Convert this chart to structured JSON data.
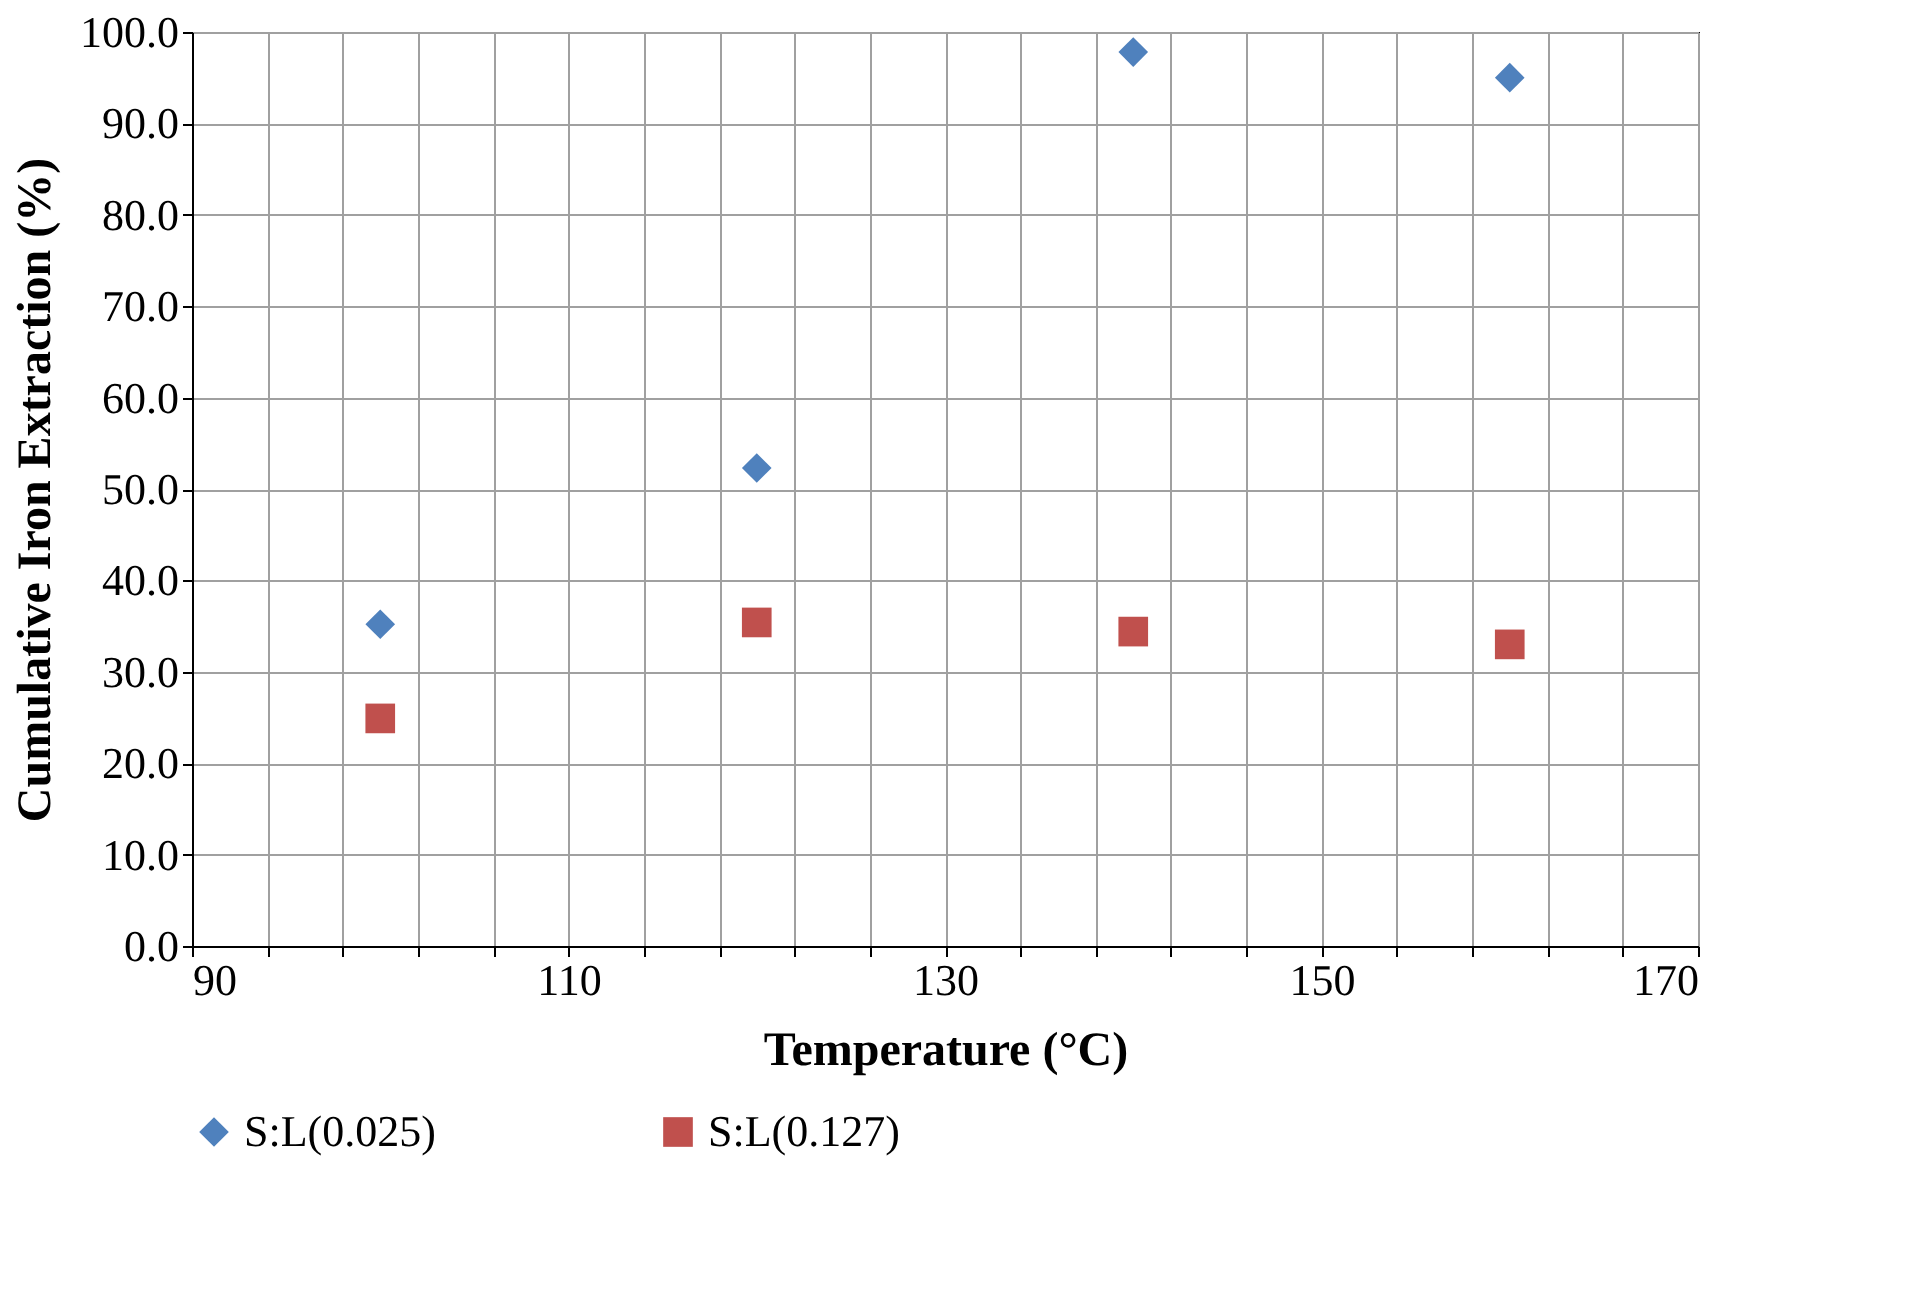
{
  "chart_data": {
    "type": "scatter",
    "xlabel": "Temperature (°C)",
    "ylabel": "Cumulative Iron Extraction (%)",
    "x": [
      100,
      120,
      140,
      160
    ],
    "series": [
      {
        "name": "S:L(0.025)",
        "color": "#4f81bd",
        "marker": "diamond",
        "values": [
          35.2,
          52.3,
          97.8,
          95.0
        ]
      },
      {
        "name": "S:L(0.127)",
        "color": "#c0504d",
        "marker": "square",
        "values": [
          24.9,
          35.4,
          34.4,
          33.0
        ]
      }
    ],
    "xlim": [
      90,
      170
    ],
    "xticks": [
      90,
      {
        "value": 94,
        "label": null
      },
      {
        "value": 98,
        "label": null
      },
      {
        "value": 102,
        "label": null
      },
      {
        "value": 106,
        "label": null
      },
      110,
      {
        "value": 114,
        "label": null
      },
      {
        "value": 118,
        "label": null
      },
      {
        "value": 122,
        "label": null
      },
      {
        "value": 126,
        "label": null
      },
      130,
      {
        "value": 134,
        "label": null
      },
      {
        "value": 138,
        "label": null
      },
      {
        "value": 142,
        "label": null
      },
      {
        "value": 146,
        "label": null
      },
      150,
      {
        "value": 154,
        "label": null
      },
      {
        "value": 158,
        "label": null
      },
      {
        "value": 162,
        "label": null
      },
      {
        "value": 166,
        "label": null
      },
      170
    ],
    "ylim": [
      0,
      100
    ],
    "yticks": [
      {
        "value": 0,
        "label": "0.0"
      },
      {
        "value": 10,
        "label": "10.0"
      },
      {
        "value": 20,
        "label": "20.0"
      },
      {
        "value": 30,
        "label": "30.0"
      },
      {
        "value": 40,
        "label": "40.0"
      },
      {
        "value": 50,
        "label": "50.0"
      },
      {
        "value": 60,
        "label": "60.0"
      },
      {
        "value": 70,
        "label": "70.0"
      },
      {
        "value": 80,
        "label": "80.0"
      },
      {
        "value": 90,
        "label": "90.0"
      },
      {
        "value": 100,
        "label": "100.0"
      }
    ],
    "grid": true,
    "legend": "bottom"
  }
}
